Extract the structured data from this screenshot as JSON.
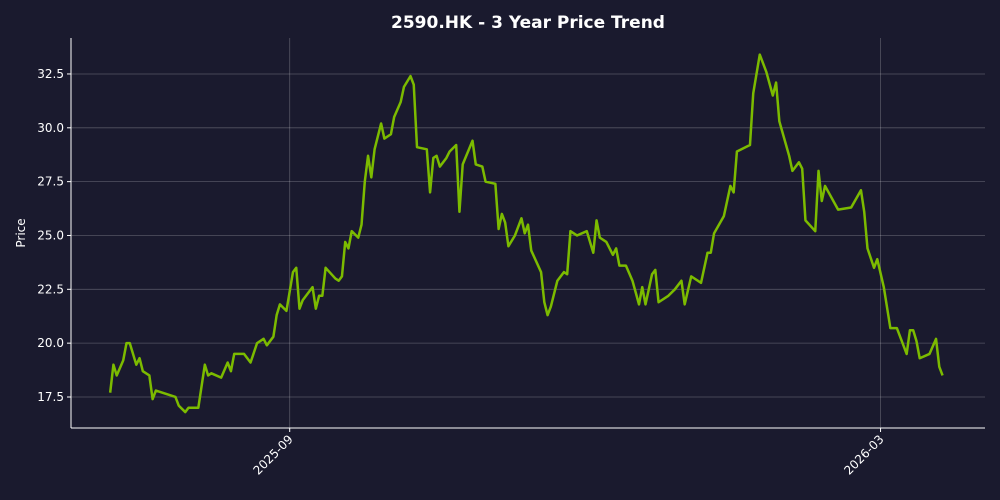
{
  "chart_data": {
    "type": "line",
    "title": "2590.HK - 3 Year Price Trend",
    "y_label": "Price",
    "x": [
      "2025-07-08",
      "2025-07-09",
      "2025-07-10",
      "2025-07-12",
      "2025-07-13",
      "2025-07-14",
      "2025-07-16",
      "2025-07-17",
      "2025-07-18",
      "2025-07-20",
      "2025-07-21",
      "2025-07-22",
      "2025-07-24",
      "2025-07-26",
      "2025-07-28",
      "2025-07-29",
      "2025-07-31",
      "2025-08-01",
      "2025-08-02",
      "2025-08-04",
      "2025-08-06",
      "2025-08-07",
      "2025-08-08",
      "2025-08-11",
      "2025-08-13",
      "2025-08-14",
      "2025-08-15",
      "2025-08-18",
      "2025-08-20",
      "2025-08-22",
      "2025-08-24",
      "2025-08-25",
      "2025-08-27",
      "2025-08-28",
      "2025-08-29",
      "2025-08-31",
      "2025-09-02",
      "2025-09-03",
      "2025-09-04",
      "2025-09-05",
      "2025-09-08",
      "2025-09-09",
      "2025-09-10",
      "2025-09-11",
      "2025-09-12",
      "2025-09-15",
      "2025-09-16",
      "2025-09-17",
      "2025-09-18",
      "2025-09-19",
      "2025-09-20",
      "2025-09-22",
      "2025-09-23",
      "2025-09-24",
      "2025-09-25",
      "2025-09-26",
      "2025-09-27",
      "2025-09-29",
      "2025-09-30",
      "2025-10-02",
      "2025-10-03",
      "2025-10-05",
      "2025-10-06",
      "2025-10-08",
      "2025-10-09",
      "2025-10-10",
      "2025-10-13",
      "2025-10-14",
      "2025-10-15",
      "2025-10-16",
      "2025-10-17",
      "2025-10-19",
      "2025-10-20",
      "2025-10-22",
      "2025-10-23",
      "2025-10-24",
      "2025-10-27",
      "2025-10-28",
      "2025-10-30",
      "2025-10-31",
      "2025-11-03",
      "2025-11-04",
      "2025-11-05",
      "2025-11-06",
      "2025-11-07",
      "2025-11-09",
      "2025-11-11",
      "2025-11-12",
      "2025-11-13",
      "2025-11-14",
      "2025-11-17",
      "2025-11-18",
      "2025-11-19",
      "2025-11-20",
      "2025-11-22",
      "2025-11-24",
      "2025-11-25",
      "2025-11-26",
      "2025-11-28",
      "2025-12-01",
      "2025-12-03",
      "2025-12-04",
      "2025-12-05",
      "2025-12-07",
      "2025-12-09",
      "2025-12-10",
      "2025-12-11",
      "2025-12-13",
      "2025-12-15",
      "2025-12-17",
      "2025-12-18",
      "2025-12-19",
      "2025-12-20",
      "2025-12-21",
      "2025-12-22",
      "2025-12-23",
      "2025-12-26",
      "2025-12-28",
      "2025-12-30",
      "2025-12-31",
      "2026-01-02",
      "2026-01-05",
      "2026-01-07",
      "2026-01-08",
      "2026-01-09",
      "2026-01-12",
      "2026-01-14",
      "2026-01-15",
      "2026-01-16",
      "2026-01-20",
      "2026-01-21",
      "2026-01-23",
      "2026-01-25",
      "2026-01-27",
      "2026-01-28",
      "2026-01-29",
      "2026-02-01",
      "2026-02-02",
      "2026-02-04",
      "2026-02-05",
      "2026-02-06",
      "2026-02-09",
      "2026-02-10",
      "2026-02-11",
      "2026-02-12",
      "2026-02-16",
      "2026-02-20",
      "2026-02-23",
      "2026-02-24",
      "2026-02-25",
      "2026-02-27",
      "2026-02-28",
      "2026-03-02",
      "2026-03-04",
      "2026-03-06",
      "2026-03-09",
      "2026-03-10",
      "2026-03-11",
      "2026-03-12",
      "2026-03-13",
      "2026-03-16",
      "2026-03-18",
      "2026-03-19",
      "2026-03-20"
    ],
    "series": [
      {
        "name": "Price",
        "color": "#7cbb00",
        "values": [
          17.7,
          19.0,
          18.5,
          19.2,
          20.0,
          20.0,
          19.0,
          19.3,
          18.7,
          18.5,
          17.4,
          17.8,
          17.7,
          17.6,
          17.5,
          17.1,
          16.8,
          17.0,
          17.0,
          17.0,
          19.0,
          18.5,
          18.6,
          18.4,
          19.1,
          18.7,
          19.5,
          19.5,
          19.1,
          20.0,
          20.2,
          19.9,
          20.3,
          21.3,
          21.8,
          21.5,
          23.3,
          23.5,
          21.6,
          22.0,
          22.6,
          21.6,
          22.2,
          22.2,
          23.5,
          23.0,
          22.9,
          23.1,
          24.7,
          24.4,
          25.2,
          24.9,
          25.5,
          27.5,
          28.7,
          27.7,
          29.0,
          30.2,
          29.5,
          29.7,
          30.5,
          31.2,
          31.9,
          32.4,
          32.0,
          29.1,
          29.0,
          27.0,
          28.6,
          28.7,
          28.2,
          28.6,
          28.9,
          29.2,
          26.1,
          28.3,
          29.4,
          28.3,
          28.2,
          27.5,
          27.4,
          25.3,
          26.0,
          25.6,
          24.5,
          25.0,
          25.8,
          25.1,
          25.5,
          24.3,
          23.3,
          21.9,
          21.3,
          21.7,
          22.9,
          23.3,
          23.2,
          25.2,
          25.0,
          25.2,
          24.2,
          25.7,
          24.9,
          24.7,
          24.1,
          24.4,
          23.6,
          23.6,
          22.9,
          21.8,
          22.6,
          21.8,
          22.5,
          23.2,
          23.4,
          21.9,
          22.2,
          22.5,
          22.9,
          21.8,
          23.1,
          22.8,
          24.2,
          24.2,
          25.1,
          25.9,
          27.3,
          27.0,
          28.9,
          29.2,
          31.6,
          33.4,
          32.6,
          31.5,
          32.1,
          30.3,
          28.7,
          28.0,
          28.4,
          28.1,
          25.7,
          25.2,
          28.0,
          26.6,
          27.3,
          26.2,
          26.3,
          27.1,
          26.1,
          24.4,
          23.5,
          23.9,
          22.6,
          20.7,
          20.7,
          19.5,
          20.6,
          20.6,
          20.1,
          19.3,
          19.5,
          20.2,
          18.9,
          18.5
        ]
      }
    ],
    "xlim": [
      "2025-06-26",
      "2026-04-02"
    ],
    "xticks": [
      {
        "value": "2025-09-01",
        "label": "2025-09"
      },
      {
        "value": "2026-03-01",
        "label": "2026-03"
      }
    ],
    "ylim": [
      16.06,
      34.17
    ],
    "yticks": [
      {
        "value": 17.5,
        "label": "17.5"
      },
      {
        "value": 20,
        "label": "20.0"
      },
      {
        "value": 22.5,
        "label": "22.5"
      },
      {
        "value": 25,
        "label": "25.0"
      },
      {
        "value": 27.5,
        "label": "27.5"
      },
      {
        "value": 30,
        "label": "30.0"
      },
      {
        "value": 32.5,
        "label": "32.5"
      }
    ],
    "grid": true
  }
}
